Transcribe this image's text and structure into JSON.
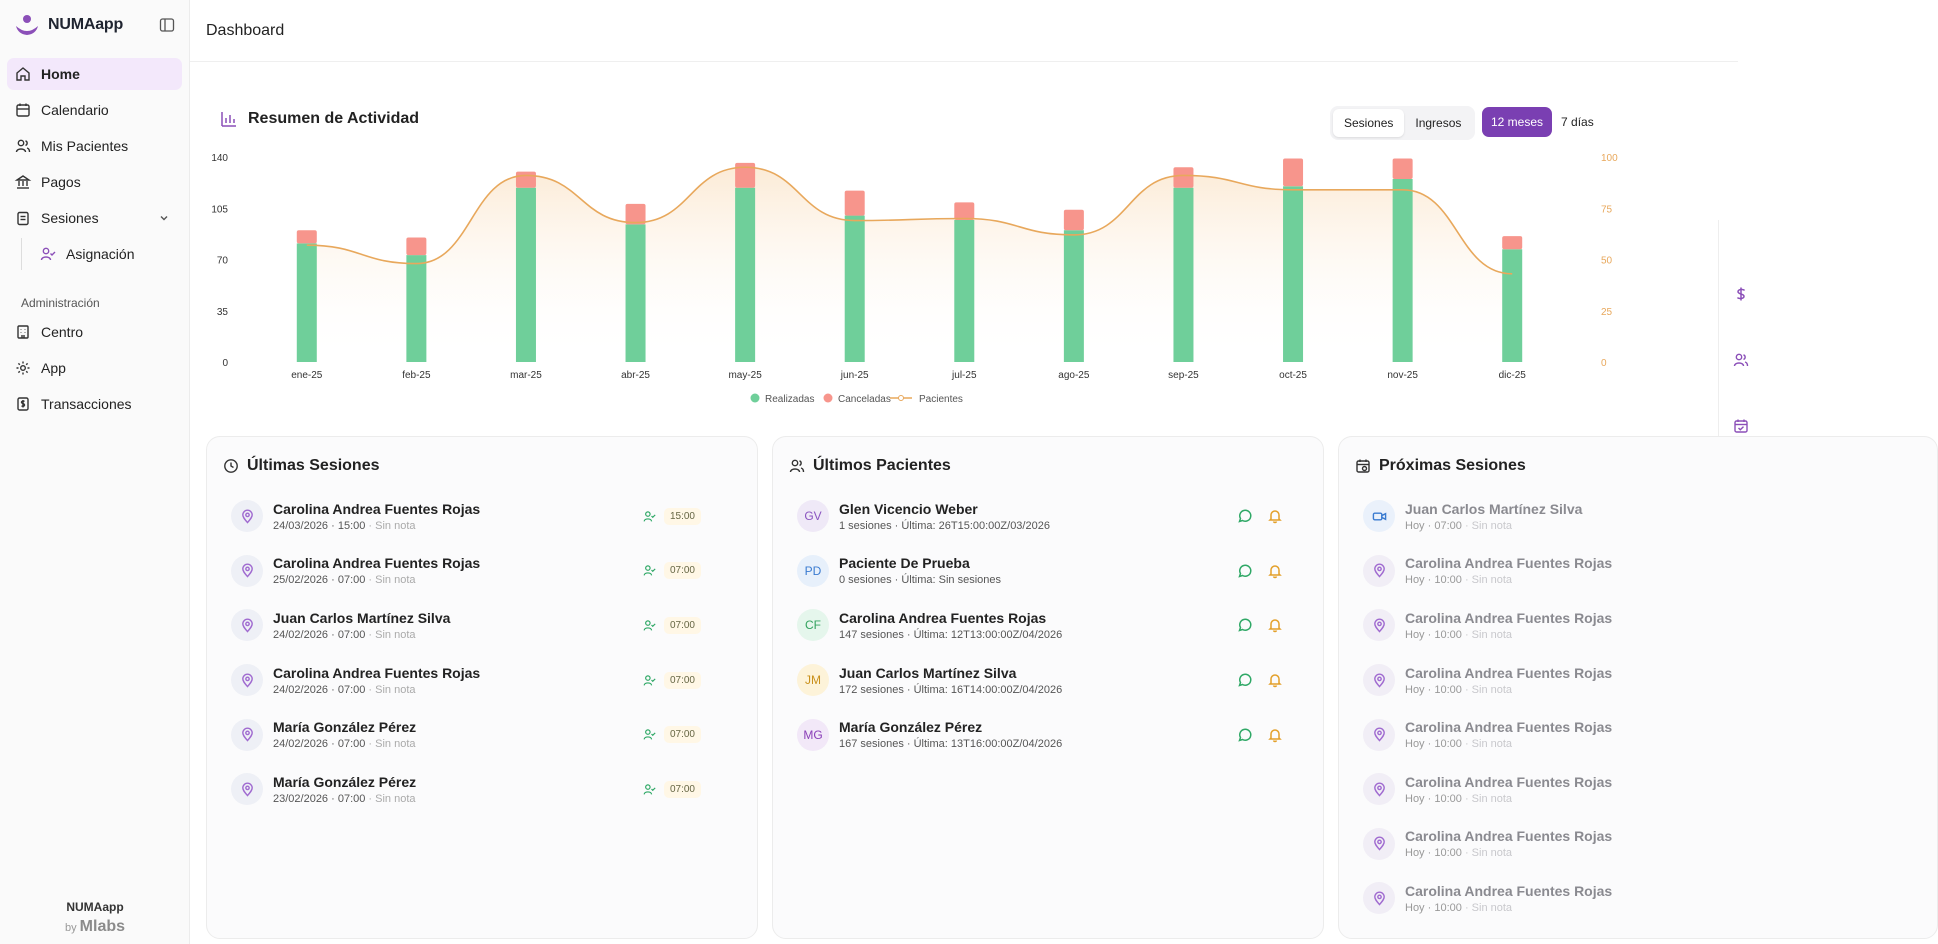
{
  "brand": {
    "name": "NUMAapp"
  },
  "sidebar": {
    "items": [
      {
        "label": "Home",
        "icon": "home-icon"
      },
      {
        "label": "Calendario",
        "icon": "calendar-icon"
      },
      {
        "label": "Mis Pacientes",
        "icon": "users-icon"
      },
      {
        "label": "Pagos",
        "icon": "bank-icon"
      },
      {
        "label": "Sesiones",
        "icon": "clipboard-icon"
      }
    ],
    "sub_items": [
      {
        "label": "Asignación",
        "icon": "user-check-icon"
      }
    ],
    "section_label": "Administración",
    "admin_items": [
      {
        "label": "Centro",
        "icon": "building-icon"
      },
      {
        "label": "App",
        "icon": "gear-icon"
      },
      {
        "label": "Transacciones",
        "icon": "receipt-icon"
      }
    ],
    "footer": {
      "name": "NUMAapp",
      "by": "by",
      "company": "Mlabs"
    }
  },
  "header": {
    "title": "Dashboard"
  },
  "activity": {
    "title": "Resumen de Actividad",
    "tabs": [
      "Sesiones",
      "Ingresos"
    ],
    "ranges": [
      "12 meses",
      "7 días"
    ],
    "accent": "#7a3fb2"
  },
  "chart_data": {
    "type": "bar",
    "categories": [
      "ene-25",
      "feb-25",
      "mar-25",
      "abr-25",
      "may-25",
      "jun-25",
      "jul-25",
      "ago-25",
      "sep-25",
      "oct-25",
      "nov-25",
      "dic-25"
    ],
    "series": [
      {
        "name": "Realizadas",
        "values": [
          81,
          73,
          119,
          94,
          119,
          100,
          97,
          90,
          119,
          120,
          125,
          77
        ],
        "color": "#6fcf9a"
      },
      {
        "name": "Canceladas",
        "values": [
          9,
          12,
          11,
          14,
          17,
          17,
          12,
          14,
          14,
          19,
          14,
          9
        ],
        "color": "#f7958c"
      },
      {
        "name": "Pacientes",
        "values": [
          57,
          48,
          91,
          68,
          95,
          69,
          70,
          62,
          91,
          84,
          84,
          43
        ],
        "color": "#e8a85c",
        "axis": "right"
      }
    ],
    "stacked": true,
    "ylim": [
      0,
      140
    ],
    "yticks": [
      0,
      35,
      70,
      105,
      140
    ],
    "y2lim": [
      0,
      100
    ],
    "y2ticks": [
      0,
      25,
      50,
      75,
      100
    ],
    "legend": "bottom-center"
  },
  "recent_sessions": {
    "title": "Últimas Sesiones",
    "rows": [
      {
        "name": "Carolina Andrea Fuentes Rojas",
        "date": "24/03/2026 · 15:00",
        "note": "· Sin nota",
        "time": "15:00"
      },
      {
        "name": "Carolina Andrea Fuentes Rojas",
        "date": "25/02/2026 · 07:00",
        "note": "· Sin nota",
        "time": "07:00"
      },
      {
        "name": "Juan Carlos Martínez Silva",
        "date": "24/02/2026 · 07:00",
        "note": "· Sin nota",
        "time": "07:00"
      },
      {
        "name": "Carolina Andrea Fuentes Rojas",
        "date": "24/02/2026 · 07:00",
        "note": "· Sin nota",
        "time": "07:00"
      },
      {
        "name": "María González Pérez",
        "date": "24/02/2026 · 07:00",
        "note": "· Sin nota",
        "time": "07:00"
      },
      {
        "name": "María González Pérez",
        "date": "23/02/2026 · 07:00",
        "note": "· Sin nota",
        "time": "07:00"
      }
    ]
  },
  "recent_patients": {
    "title": "Últimos Pacientes",
    "rows": [
      {
        "initials": "GV",
        "name": "Glen Vicencio Weber",
        "info": "1 sesiones · Última: 26T15:00:00Z/03/2026",
        "bg": "#efe9f7",
        "fg": "#8a55c0"
      },
      {
        "initials": "PD",
        "name": "Paciente De Prueba",
        "info": "0 sesiones · Última: Sin sesiones",
        "bg": "#e7f0fb",
        "fg": "#3b7bd0"
      },
      {
        "initials": "CF",
        "name": "Carolina Andrea Fuentes Rojas",
        "info": "147 sesiones · Última: 12T13:00:00Z/04/2026",
        "bg": "#e5f6ec",
        "fg": "#34a35f"
      },
      {
        "initials": "JM",
        "name": "Juan Carlos Martínez Silva",
        "info": "172 sesiones · Última: 16T14:00:00Z/04/2026",
        "bg": "#fdf3d9",
        "fg": "#c9901a"
      },
      {
        "initials": "MG",
        "name": "María González Pérez",
        "info": "167 sesiones · Última: 13T16:00:00Z/04/2026",
        "bg": "#f2e8f8",
        "fg": "#8a3fb8"
      }
    ]
  },
  "upcoming_sessions": {
    "title": "Próximas Sesiones",
    "rows": [
      {
        "name": "Juan Carlos Martínez Silva",
        "date": "Hoy · 07:00",
        "note": "· Sin nota",
        "kind": "video"
      },
      {
        "name": "Carolina Andrea Fuentes Rojas",
        "date": "Hoy · 10:00",
        "note": "· Sin nota",
        "kind": "place"
      },
      {
        "name": "Carolina Andrea Fuentes Rojas",
        "date": "Hoy · 10:00",
        "note": "· Sin nota",
        "kind": "place"
      },
      {
        "name": "Carolina Andrea Fuentes Rojas",
        "date": "Hoy · 10:00",
        "note": "· Sin nota",
        "kind": "place"
      },
      {
        "name": "Carolina Andrea Fuentes Rojas",
        "date": "Hoy · 10:00",
        "note": "· Sin nota",
        "kind": "place"
      },
      {
        "name": "Carolina Andrea Fuentes Rojas",
        "date": "Hoy · 10:00",
        "note": "· Sin nota",
        "kind": "place"
      },
      {
        "name": "Carolina Andrea Fuentes Rojas",
        "date": "Hoy · 10:00",
        "note": "· Sin nota",
        "kind": "place"
      },
      {
        "name": "Carolina Andrea Fuentes Rojas",
        "date": "Hoy · 10:00",
        "note": "· Sin nota",
        "kind": "place"
      }
    ]
  }
}
